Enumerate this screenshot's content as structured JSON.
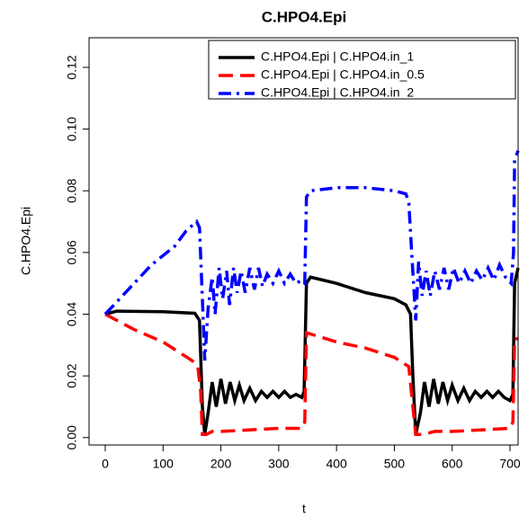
{
  "chart_data": {
    "type": "line",
    "title": "C.HPO4.Epi",
    "x_label": "t",
    "y_label": "C.HPO4.Epi",
    "xlim": [
      -28,
      714
    ],
    "ylim": [
      -0.0024,
      0.1296
    ],
    "xticks": [
      0,
      100,
      200,
      300,
      400,
      500,
      600,
      700
    ],
    "yticks": [
      {
        "value": 0,
        "label": "0.00"
      },
      0.02,
      0.04,
      0.06,
      0.08,
      {
        "value": 0.1,
        "label": "0.10"
      },
      0.12
    ],
    "legend_position": "top-right",
    "series": [
      {
        "name": "C.HPO4.Epi | C.HPO4.in_1",
        "color": "#000000",
        "linestyle": "solid",
        "x": [
          0,
          20,
          100,
          155,
          163,
          168,
          172,
          178,
          185,
          192,
          200,
          208,
          216,
          224,
          232,
          240,
          250,
          260,
          270,
          280,
          290,
          300,
          310,
          320,
          330,
          340,
          344,
          348,
          355,
          400,
          450,
          500,
          520,
          528,
          532,
          537,
          545,
          552,
          560,
          568,
          576,
          584,
          592,
          600,
          610,
          620,
          630,
          640,
          650,
          660,
          670,
          680,
          690,
          700,
          705,
          708,
          714
        ],
        "values": [
          0.04,
          0.041,
          0.0408,
          0.0403,
          0.038,
          0.01,
          0.001,
          0.008,
          0.018,
          0.01,
          0.019,
          0.011,
          0.018,
          0.012,
          0.017,
          0.012,
          0.016,
          0.012,
          0.015,
          0.013,
          0.015,
          0.013,
          0.015,
          0.013,
          0.014,
          0.013,
          0.015,
          0.05,
          0.052,
          0.05,
          0.047,
          0.045,
          0.043,
          0.04,
          0.02,
          0.001,
          0.008,
          0.018,
          0.01,
          0.019,
          0.011,
          0.018,
          0.012,
          0.017,
          0.012,
          0.016,
          0.012,
          0.015,
          0.013,
          0.015,
          0.013,
          0.015,
          0.013,
          0.012,
          0.014,
          0.05,
          0.055
        ]
      },
      {
        "name": "C.HPO4.Epi | C.HPO4.in_0.5",
        "color": "#ff0000",
        "linestyle": "dashed",
        "x": [
          0,
          50,
          100,
          150,
          160,
          165,
          168,
          175,
          185,
          200,
          250,
          300,
          340,
          345,
          348,
          400,
          450,
          500,
          525,
          532,
          537,
          550,
          570,
          600,
          650,
          700,
          705,
          708,
          714
        ],
        "values": [
          0.04,
          0.035,
          0.031,
          0.025,
          0.023,
          0.015,
          0.001,
          0.001,
          0.002,
          0.002,
          0.0025,
          0.003,
          0.003,
          0.005,
          0.034,
          0.031,
          0.029,
          0.026,
          0.023,
          0.01,
          0.001,
          0.001,
          0.002,
          0.002,
          0.0025,
          0.003,
          0.005,
          0.032,
          0.032
        ]
      },
      {
        "name": "C.HPO4.Epi | C.HPO4.in_2",
        "color": "#0000ff",
        "linestyle": "dashdot",
        "x": [
          0,
          20,
          50,
          80,
          120,
          140,
          158,
          163,
          168,
          172,
          178,
          185,
          190,
          197,
          203,
          210,
          215,
          222,
          228,
          235,
          242,
          250,
          258,
          265,
          272,
          280,
          290,
          300,
          310,
          320,
          330,
          340,
          345,
          348,
          355,
          400,
          450,
          500,
          520,
          525,
          530,
          537,
          542,
          548,
          555,
          562,
          570,
          578,
          586,
          594,
          602,
          612,
          622,
          632,
          642,
          652,
          662,
          672,
          682,
          692,
          702,
          706,
          708,
          714
        ],
        "values": [
          0.04,
          0.044,
          0.05,
          0.056,
          0.062,
          0.067,
          0.07,
          0.068,
          0.045,
          0.025,
          0.042,
          0.052,
          0.04,
          0.055,
          0.045,
          0.054,
          0.043,
          0.055,
          0.047,
          0.054,
          0.047,
          0.055,
          0.048,
          0.055,
          0.049,
          0.053,
          0.05,
          0.054,
          0.05,
          0.053,
          0.05,
          0.051,
          0.05,
          0.078,
          0.08,
          0.081,
          0.081,
          0.08,
          0.079,
          0.076,
          0.06,
          0.038,
          0.057,
          0.046,
          0.054,
          0.046,
          0.054,
          0.048,
          0.055,
          0.048,
          0.055,
          0.05,
          0.054,
          0.05,
          0.054,
          0.051,
          0.055,
          0.051,
          0.056,
          0.052,
          0.05,
          0.06,
          0.09,
          0.093
        ]
      }
    ]
  }
}
